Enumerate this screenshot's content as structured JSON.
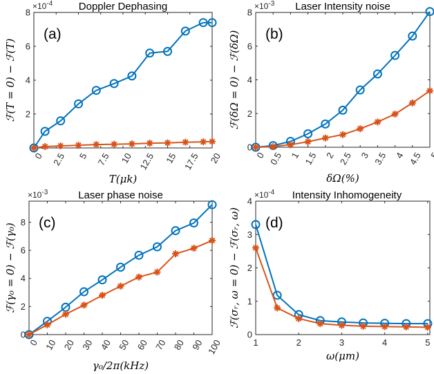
{
  "colors": {
    "series1": "#0072BD",
    "series2": "#D95319",
    "axis": "#262626"
  },
  "chart_data": [
    {
      "id": "a",
      "type": "line",
      "panel_label": "(a)",
      "title": "Doppler Dephasing",
      "xlabel": "T(μk)",
      "ylabel": "ℱ(T = 0) − ℱ(T)",
      "exponent": "×10",
      "exponent_power": "-4",
      "xlim": [
        0,
        20
      ],
      "ylim": [
        0,
        8
      ],
      "xticks": [
        0,
        2.5,
        5,
        7.5,
        10,
        12.5,
        15,
        17.5,
        20
      ],
      "xtick_labels": [
        "0",
        "2.5",
        "5",
        "7.5",
        "10",
        "12.5",
        "15",
        "17.5",
        "20"
      ],
      "xtick_rotate": true,
      "yticks": [
        2,
        4,
        6,
        8
      ],
      "ytick_labels": [
        "2",
        "4",
        "6",
        "8"
      ],
      "grid": false,
      "series": [
        {
          "marker": "circle",
          "x": [
            0,
            1.25,
            3,
            5,
            7,
            9,
            11,
            13,
            15,
            17,
            19,
            20
          ],
          "y": [
            0,
            0.98,
            1.6,
            2.6,
            3.4,
            3.8,
            4.25,
            5.6,
            5.7,
            6.9,
            7.4,
            7.4
          ]
        },
        {
          "marker": "star",
          "x": [
            0,
            1.25,
            3,
            5,
            7,
            9,
            11,
            13,
            15,
            17,
            19,
            20
          ],
          "y": [
            0,
            0.08,
            0.12,
            0.16,
            0.2,
            0.22,
            0.24,
            0.28,
            0.3,
            0.34,
            0.36,
            0.38
          ]
        }
      ]
    },
    {
      "id": "b",
      "type": "line",
      "panel_label": "(b)",
      "title": "Laser Intensity noise",
      "xlabel": "δΩ(%)",
      "ylabel": "ℱ(δΩ = 0) − ℱ(δΩ)",
      "exponent": "×10",
      "exponent_power": "-3",
      "xlim": [
        0,
        5
      ],
      "ylim": [
        0,
        8
      ],
      "xticks": [
        0,
        0.5,
        1,
        1.5,
        2,
        2.5,
        3,
        3.5,
        4,
        4.5,
        5
      ],
      "xtick_labels": [
        "0",
        "0.5",
        "1",
        "1.5",
        "2",
        "2.5",
        "3",
        "3.5",
        "4",
        "4.5",
        "5"
      ],
      "xtick_rotate": true,
      "yticks": [
        0,
        2,
        4,
        6,
        8
      ],
      "ytick_labels": [
        "0",
        "2",
        "4",
        "6",
        "8"
      ],
      "grid": false,
      "series": [
        {
          "marker": "circle",
          "x": [
            0,
            0.5,
            1,
            1.5,
            2,
            2.5,
            3,
            3.5,
            4,
            4.5,
            5
          ],
          "y": [
            0,
            0.1,
            0.35,
            0.8,
            1.38,
            2.2,
            3.4,
            4.35,
            5.45,
            6.6,
            8.05
          ]
        },
        {
          "marker": "star",
          "x": [
            0,
            0.5,
            1,
            1.5,
            2,
            2.5,
            3,
            3.5,
            4,
            4.5,
            5
          ],
          "y": [
            0,
            0.04,
            0.15,
            0.33,
            0.55,
            0.75,
            1.1,
            1.5,
            1.97,
            2.63,
            3.35
          ]
        }
      ]
    },
    {
      "id": "c",
      "type": "line",
      "panel_label": "(c)",
      "title": "Laser phase noise",
      "xlabel": "γ₀/2π(kHz)",
      "ylabel": "ℱ(γ₀ = 0) − ℱ(γ₀)",
      "exponent": "×10",
      "exponent_power": "-3",
      "xlim": [
        0,
        100
      ],
      "ylim": [
        0,
        9.5
      ],
      "xticks": [
        0,
        10,
        20,
        30,
        40,
        50,
        60,
        70,
        80,
        90,
        100
      ],
      "xtick_labels": [
        "0",
        "10",
        "20",
        "30",
        "40",
        "50",
        "60",
        "70",
        "80",
        "90",
        "100"
      ],
      "xtick_rotate": true,
      "yticks": [
        0,
        2,
        4,
        6,
        8
      ],
      "ytick_labels": [
        "0",
        "2",
        "4",
        "6",
        "8"
      ],
      "grid": false,
      "series": [
        {
          "marker": "circle",
          "x": [
            0,
            10,
            20,
            30,
            40,
            50,
            60,
            70,
            80,
            90,
            100
          ],
          "y": [
            0,
            0.95,
            1.95,
            3.05,
            3.9,
            4.8,
            5.65,
            6.25,
            7.4,
            7.95,
            9.25
          ]
        },
        {
          "marker": "star",
          "x": [
            0,
            10,
            20,
            30,
            40,
            50,
            60,
            70,
            80,
            90,
            100
          ],
          "y": [
            0,
            0.7,
            1.45,
            2.1,
            2.8,
            3.45,
            4.1,
            4.45,
            5.75,
            6.15,
            6.7
          ]
        }
      ]
    },
    {
      "id": "d",
      "type": "line",
      "panel_label": "(d)",
      "title": "Intensity Inhomogeneity",
      "xlabel": "ω(μm)",
      "ylabel": "ℱ(σᵣ, ω = 0) − ℱ(σᵣ, ω)",
      "exponent": "×10",
      "exponent_power": "-4",
      "xlim": [
        1,
        5.05
      ],
      "ylim": [
        0,
        4
      ],
      "xticks": [
        1,
        2,
        3,
        4,
        5
      ],
      "xtick_labels": [
        "1",
        "2",
        "3",
        "4",
        "5"
      ],
      "xtick_rotate": false,
      "yticks": [
        0,
        1,
        2,
        3,
        4
      ],
      "ytick_labels": [
        "0",
        "1",
        "2",
        "3",
        "4"
      ],
      "grid": false,
      "series": [
        {
          "marker": "circle",
          "x": [
            1,
            1.5,
            2,
            2.5,
            3,
            3.5,
            4,
            4.5,
            5
          ],
          "y": [
            3.3,
            1.18,
            0.6,
            0.42,
            0.38,
            0.35,
            0.34,
            0.33,
            0.33
          ]
        },
        {
          "marker": "star",
          "x": [
            1,
            1.5,
            2,
            2.5,
            3,
            3.5,
            4,
            4.5,
            5
          ],
          "y": [
            2.6,
            0.8,
            0.48,
            0.33,
            0.28,
            0.25,
            0.24,
            0.23,
            0.22
          ]
        }
      ]
    }
  ]
}
